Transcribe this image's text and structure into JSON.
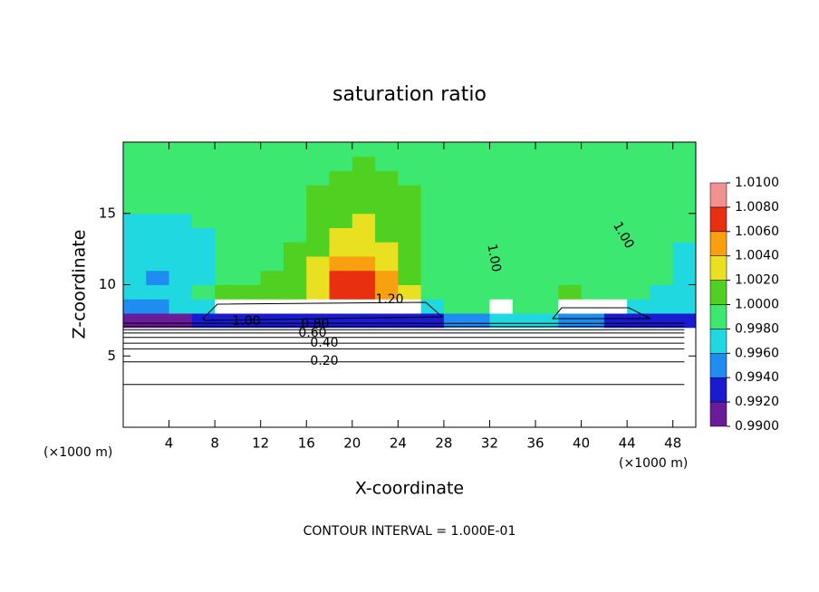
{
  "chart_data": {
    "type": "heatmap",
    "title": "saturation ratio",
    "x_label": "X-coordinate",
    "y_label": "Z-coordinate",
    "x_unit_left": "(×1000 m)",
    "x_unit_right": "(×1000 m)",
    "footer": "CONTOUR INTERVAL = 1.000E-01",
    "xlim": [
      0,
      50
    ],
    "ylim": [
      0,
      20
    ],
    "xticks": [
      4,
      8,
      12,
      16,
      20,
      24,
      28,
      32,
      36,
      40,
      44,
      48
    ],
    "yticks": [
      5,
      10,
      15
    ],
    "x": [
      1,
      3,
      5,
      7,
      9,
      11,
      13,
      15,
      17,
      19,
      21,
      23,
      25,
      27,
      29,
      31,
      33,
      35,
      37,
      39,
      41,
      43,
      45,
      47,
      49
    ],
    "z": [
      0.5,
      1.5,
      2.5,
      3.5,
      4.5,
      5.5,
      6.5,
      7.5,
      8.5,
      9.5,
      10.5,
      11.5,
      12.5,
      13.5,
      14.5,
      15.5,
      16.5,
      17.5,
      18.5,
      19.5
    ],
    "values": [
      [
        0.05,
        0.05,
        0.05,
        0.05,
        0.05,
        0.05,
        0.05,
        0.05,
        0.05,
        0.05,
        0.05,
        0.05,
        0.05,
        0.05,
        0.05,
        0.05,
        0.05,
        0.05,
        0.05,
        0.05,
        0.05,
        0.05,
        0.05,
        0.05,
        0.05
      ],
      [
        0.06,
        0.06,
        0.06,
        0.06,
        0.06,
        0.06,
        0.06,
        0.06,
        0.06,
        0.06,
        0.06,
        0.06,
        0.06,
        0.06,
        0.06,
        0.06,
        0.06,
        0.06,
        0.06,
        0.06,
        0.06,
        0.06,
        0.06,
        0.06,
        0.06
      ],
      [
        0.08,
        0.08,
        0.08,
        0.08,
        0.08,
        0.08,
        0.08,
        0.08,
        0.08,
        0.08,
        0.08,
        0.08,
        0.08,
        0.08,
        0.08,
        0.08,
        0.08,
        0.08,
        0.08,
        0.08,
        0.08,
        0.08,
        0.08,
        0.08,
        0.08
      ],
      [
        0.12,
        0.12,
        0.12,
        0.12,
        0.12,
        0.12,
        0.12,
        0.12,
        0.12,
        0.12,
        0.12,
        0.12,
        0.12,
        0.12,
        0.12,
        0.12,
        0.12,
        0.12,
        0.12,
        0.12,
        0.12,
        0.12,
        0.12,
        0.12,
        0.12
      ],
      [
        0.19,
        0.19,
        0.19,
        0.19,
        0.19,
        0.19,
        0.19,
        0.19,
        0.19,
        0.19,
        0.19,
        0.19,
        0.19,
        0.19,
        0.19,
        0.19,
        0.19,
        0.19,
        0.19,
        0.19,
        0.19,
        0.19,
        0.19,
        0.19,
        0.19
      ],
      [
        0.3,
        0.3,
        0.3,
        0.3,
        0.3,
        0.3,
        0.3,
        0.3,
        0.3,
        0.3,
        0.3,
        0.3,
        0.3,
        0.3,
        0.3,
        0.3,
        0.3,
        0.3,
        0.3,
        0.3,
        0.3,
        0.3,
        0.3,
        0.3,
        0.3
      ],
      [
        0.55,
        0.55,
        0.55,
        0.55,
        0.55,
        0.55,
        0.55,
        0.55,
        0.55,
        0.55,
        0.55,
        0.55,
        0.55,
        0.55,
        0.55,
        0.55,
        0.55,
        0.55,
        0.55,
        0.55,
        0.55,
        0.55,
        0.55,
        0.55,
        0.55
      ],
      [
        0.992,
        0.992,
        0.992,
        0.993,
        0.993,
        0.993,
        0.993,
        0.993,
        0.993,
        0.993,
        0.993,
        0.993,
        0.993,
        0.994,
        0.995,
        0.996,
        0.997,
        0.997,
        0.997,
        0.996,
        0.995,
        0.994,
        0.993,
        0.993,
        0.993
      ],
      [
        0.996,
        0.996,
        0.997,
        0.997,
        1.2,
        1.2,
        1.2,
        1.2,
        1.2,
        1.2,
        1.2,
        1.2,
        1.2,
        0.998,
        0.999,
        0.999,
        1.05,
        0.999,
        0.999,
        1.1,
        1.1,
        1.1,
        0.998,
        0.997,
        0.997
      ],
      [
        0.997,
        0.997,
        0.998,
        0.999,
        1.0005,
        1.0005,
        1.001,
        1.001,
        1.004,
        1.007,
        1.007,
        1.006,
        1.003,
        0.999,
        0.999,
        1.0,
        1.0,
        1.0,
        1.0,
        1.0005,
        1.0,
        1.0,
        0.999,
        0.998,
        0.998
      ],
      [
        0.9965,
        0.996,
        0.997,
        0.998,
        0.999,
        1.0,
        1.0005,
        1.001,
        1.004,
        1.007,
        1.0065,
        1.005,
        1.002,
        0.9995,
        0.999,
        0.9995,
        1.0,
        1.0,
        1.0,
        1.0,
        1.0,
        0.9995,
        0.999,
        0.9985,
        0.998
      ],
      [
        0.997,
        0.9965,
        0.997,
        0.998,
        0.999,
        0.9995,
        1.0,
        1.001,
        1.003,
        1.006,
        1.006,
        1.004,
        1.001,
        0.999,
        0.999,
        0.9995,
        1.0,
        1.0,
        1.0,
        1.0,
        1.0,
        0.9995,
        0.999,
        0.9985,
        0.998
      ],
      [
        0.9975,
        0.997,
        0.997,
        0.998,
        0.9985,
        0.999,
        1.0,
        1.0005,
        1.002,
        1.004,
        1.004,
        1.003,
        1.0005,
        0.999,
        0.999,
        0.9995,
        1.0,
        1.0,
        1.0,
        1.0,
        1.0,
        1.0,
        0.9995,
        0.9985,
        0.998
      ],
      [
        0.998,
        0.9975,
        0.9975,
        0.998,
        0.9985,
        0.999,
        0.9995,
        1.0,
        1.0015,
        1.003,
        1.003,
        1.002,
        1.0005,
        0.9995,
        0.9995,
        1.0,
        1.0,
        1.0,
        1.0,
        1.0,
        1.0,
        1.0,
        0.9995,
        0.999,
        0.9985
      ],
      [
        0.998,
        0.998,
        0.998,
        0.9985,
        0.999,
        0.9995,
        0.9995,
        1.0,
        1.001,
        1.002,
        1.0025,
        1.0015,
        1.0005,
        1.0,
        1.0,
        1.0,
        1.0,
        1.0,
        1.0,
        1.0,
        1.0,
        1.0,
        1.0,
        0.9995,
        0.999
      ],
      [
        0.9985,
        0.9985,
        0.9985,
        0.999,
        0.9995,
        0.9995,
        1.0,
        1.0,
        1.001,
        1.0015,
        1.002,
        1.0015,
        1.0005,
        1.0,
        1.0,
        1.0,
        1.0,
        1.0,
        1.0,
        1.0,
        1.0,
        1.0,
        1.0,
        1.0,
        0.9995
      ],
      [
        0.999,
        0.999,
        0.999,
        0.9995,
        0.9995,
        1.0,
        1.0,
        1.0,
        1.0005,
        1.001,
        1.0015,
        1.001,
        1.0005,
        1.0,
        1.0,
        1.0,
        1.0,
        1.0,
        1.0,
        1.0,
        1.0,
        1.0,
        1.0,
        1.0,
        1.0
      ],
      [
        0.9995,
        0.9995,
        0.9995,
        0.9995,
        1.0,
        1.0,
        1.0,
        1.0,
        1.0,
        1.0005,
        1.001,
        1.0005,
        1.0,
        1.0,
        1.0,
        1.0,
        1.0,
        1.0,
        1.0,
        1.0,
        1.0,
        1.0,
        1.0,
        1.0,
        1.0
      ],
      [
        0.9995,
        0.9995,
        1.0,
        1.0,
        1.0,
        1.0,
        1.0,
        1.0,
        1.0,
        1.0,
        1.0005,
        1.0,
        1.0,
        1.0,
        1.0,
        1.0,
        1.0,
        1.0,
        1.0,
        1.0,
        1.0,
        1.0,
        1.0,
        1.0,
        1.0
      ],
      [
        0.9995,
        0.9995,
        1.0,
        1.0,
        1.0,
        1.0,
        1.0,
        1.0,
        1.0,
        1.0,
        1.0,
        1.0,
        1.0,
        1.0,
        1.0,
        1.0,
        1.0,
        1.0,
        1.0,
        1.0,
        1.0,
        1.0,
        1.0,
        1.0,
        1.0
      ]
    ],
    "colorbar_ticks": [
      {
        "value": 0.99,
        "label": "0.9900"
      },
      {
        "value": 0.992,
        "label": "0.9920"
      },
      {
        "value": 0.994,
        "label": "0.9940"
      },
      {
        "value": 0.996,
        "label": "0.9960"
      },
      {
        "value": 0.998,
        "label": "0.9980"
      },
      {
        "value": 1.0,
        "label": "1.0000"
      },
      {
        "value": 1.002,
        "label": "1.0020"
      },
      {
        "value": 1.004,
        "label": "1.0040"
      },
      {
        "value": 1.006,
        "label": "1.0060"
      },
      {
        "value": 1.008,
        "label": "1.0080"
      },
      {
        "value": 1.01,
        "label": "1.0100"
      }
    ],
    "colors": [
      "#6a1b9a",
      "#1a1ad0",
      "#1e8cf0",
      "#20d8e0",
      "#3ce870",
      "#50d020",
      "#e8e020",
      "#f8a010",
      "#e83010",
      "#f09090"
    ],
    "contour_levels": [
      0.1,
      0.2,
      0.3,
      0.4,
      0.5,
      0.6,
      0.7,
      0.8,
      0.9
    ],
    "contour_labels": [
      {
        "value": 1.2,
        "label": "1.20"
      },
      {
        "value": 1.0,
        "label": "1.00"
      },
      {
        "value": 0.8,
        "label": "0.80"
      },
      {
        "value": 0.6,
        "label": "0.60"
      },
      {
        "value": 0.4,
        "label": "0.40"
      },
      {
        "value": 0.2,
        "label": "0.20"
      },
      {
        "value": 1.0,
        "label": "1.00"
      },
      {
        "value": 1.0,
        "label": "1.00"
      }
    ]
  }
}
